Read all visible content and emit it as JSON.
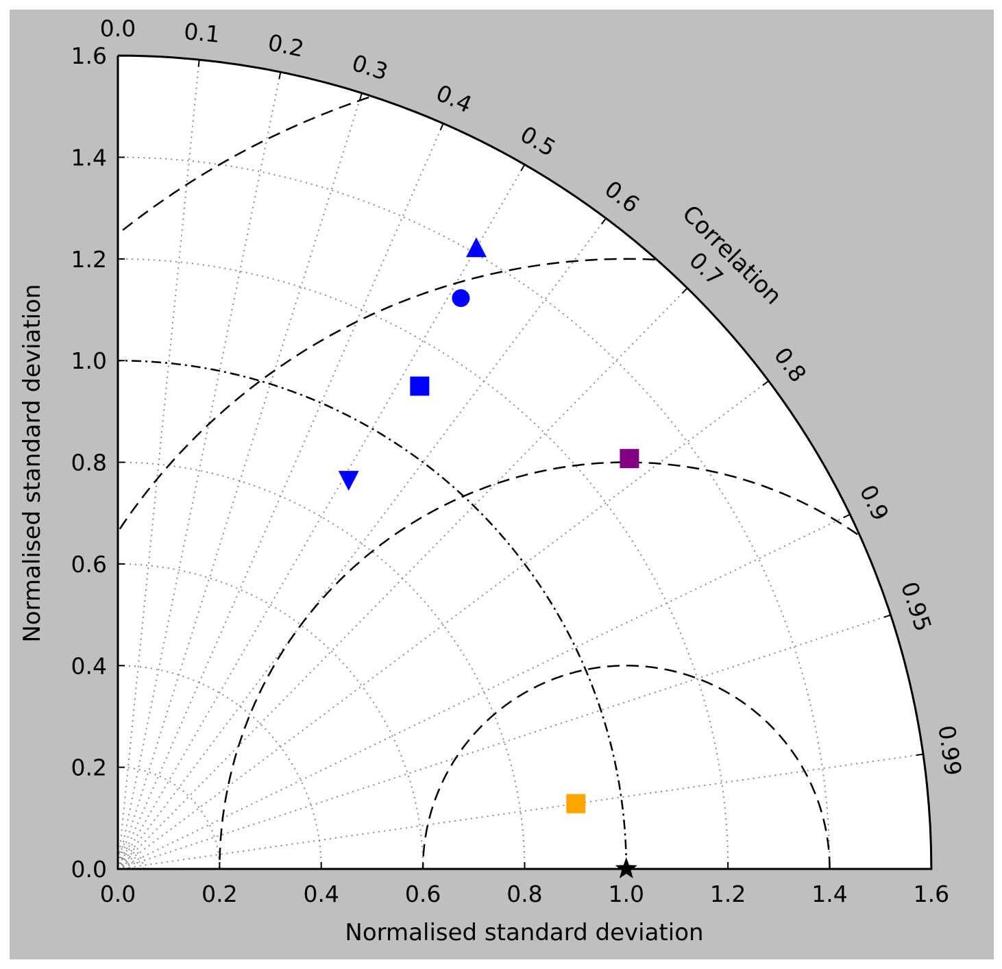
{
  "chart_data": {
    "type": "scatter",
    "subtype": "taylor-diagram",
    "xlabel": "Normalised standard deviation",
    "ylabel": "Normalised standard deviation",
    "angle_label": "Correlation",
    "std_range": [
      0.0,
      1.6
    ],
    "std_ticks": [
      "0.0",
      "0.2",
      "0.4",
      "0.6",
      "0.8",
      "1.0",
      "1.2",
      "1.4",
      "1.6"
    ],
    "std_tick_values": [
      0,
      0.2,
      0.4,
      0.6,
      0.8,
      1.0,
      1.2,
      1.4,
      1.6
    ],
    "corr_ticks": [
      "0.0",
      "0.1",
      "0.2",
      "0.3",
      "0.4",
      "0.5",
      "0.6",
      "0.7",
      "0.8",
      "0.9",
      "0.95",
      "0.99"
    ],
    "corr_tick_values": [
      0,
      0.1,
      0.2,
      0.3,
      0.4,
      0.5,
      0.6,
      0.7,
      0.8,
      0.9,
      0.95,
      0.99
    ],
    "rms_contours": [
      0.4,
      0.8,
      1.2,
      1.6
    ],
    "reference": {
      "std": 1.0,
      "corr": 1.0,
      "marker": "star",
      "color": "#000000"
    },
    "points": [
      {
        "marker": "triangle-up",
        "color": "#0000ff",
        "std": 1.41,
        "corr": 0.5
      },
      {
        "marker": "circle",
        "color": "#0000ff",
        "std": 1.31,
        "corr": 0.515
      },
      {
        "marker": "square",
        "color": "#0000ff",
        "std": 1.12,
        "corr": 0.53
      },
      {
        "marker": "triangle-down",
        "color": "#0000ff",
        "std": 0.89,
        "corr": 0.51
      },
      {
        "marker": "square",
        "color": "#800080",
        "std": 1.29,
        "corr": 0.78
      },
      {
        "marker": "square",
        "color": "#ffa500",
        "std": 0.91,
        "corr": 0.99
      }
    ],
    "grid": true,
    "background": "#bfbfbf"
  }
}
